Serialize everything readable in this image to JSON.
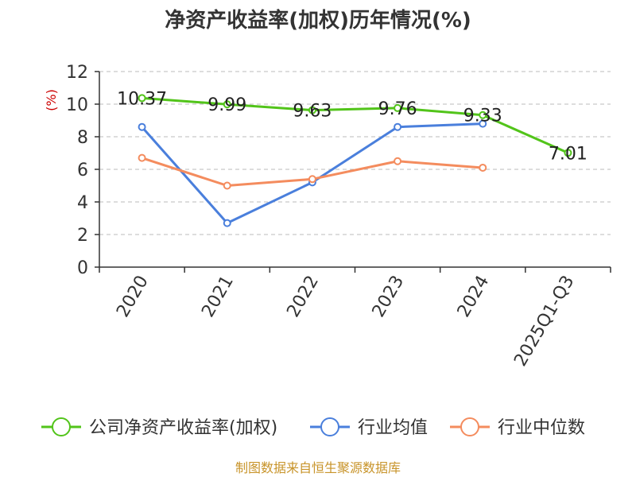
{
  "chart_data": {
    "type": "line",
    "title": "净资产收益率(加权)历年情况(%)",
    "ylabel": "(%)",
    "xlabel": "",
    "categories": [
      "2020",
      "2021",
      "2022",
      "2023",
      "2024",
      "2025Q1-Q3"
    ],
    "ylim": [
      0,
      12
    ],
    "yticks": [
      0,
      2,
      4,
      6,
      8,
      10,
      12
    ],
    "grid": true,
    "legend_position": "bottom",
    "series": [
      {
        "name": "公司净资产收益率(加权)",
        "color": "#52c41a",
        "values": [
          10.37,
          9.99,
          9.63,
          9.76,
          9.33,
          7.01
        ],
        "labels": [
          "10.37",
          "9.99",
          "9.63",
          "9.76",
          "9.33",
          "7.01"
        ]
      },
      {
        "name": "行业均值",
        "color": "#4a7fdc",
        "values": [
          8.6,
          2.7,
          5.2,
          8.6,
          8.8,
          null
        ]
      },
      {
        "name": "行业中位数",
        "color": "#f48c5e",
        "values": [
          6.7,
          5.0,
          5.4,
          6.5,
          6.1,
          null
        ]
      }
    ]
  },
  "source_text": "制图数据来自恒生聚源数据库"
}
